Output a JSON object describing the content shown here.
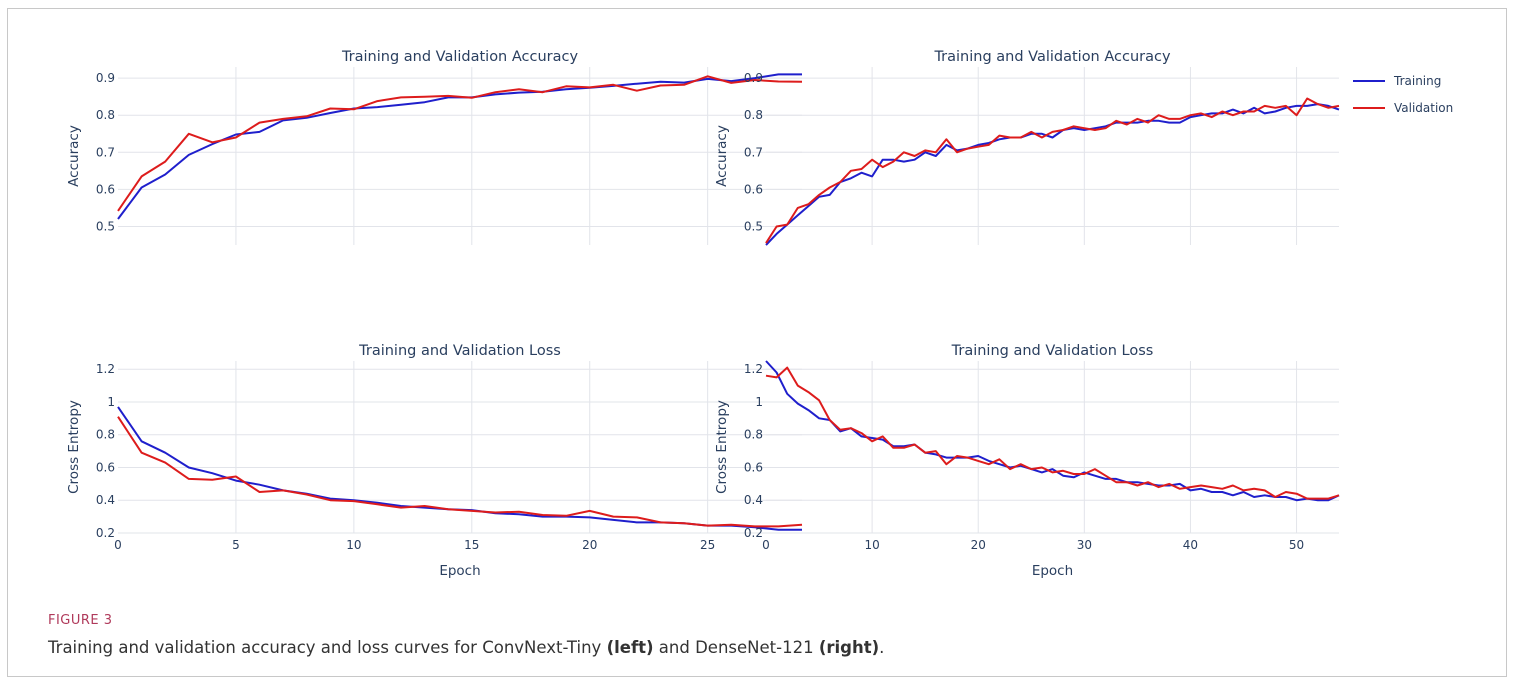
{
  "caption": {
    "label": "FIGURE 3",
    "text_a": "Training and validation accuracy and loss curves for ConvNext-Tiny ",
    "bold_a": "(left)",
    "text_b": " and DenseNet-121 ",
    "bold_b": "(right)",
    "text_c": "."
  },
  "legend": [
    {
      "name": "Training",
      "color": "#1f1fcc"
    },
    {
      "name": "Validation",
      "color": "#dd1c1c"
    }
  ],
  "colors": {
    "training": "#1f1fcc",
    "validation": "#dd1c1c",
    "grid": "#e2e4ea",
    "text": "#2a3f5f"
  },
  "chart_data": [
    {
      "type": "line",
      "title": "Training and Validation Accuracy",
      "xlabel": "",
      "ylabel": "Accuracy",
      "xlim": [
        0,
        29
      ],
      "ylim": [
        0.45,
        0.93
      ],
      "xticks": [
        0,
        5,
        10,
        15,
        20,
        25
      ],
      "yticks": [
        0.5,
        0.6,
        0.7,
        0.8,
        0.9
      ],
      "ytick_labels": [
        "0.5",
        "0.6",
        "0.7",
        "0.8",
        "0.9"
      ],
      "show_xtick_labels": false,
      "series": [
        {
          "name": "Training",
          "x0": 0,
          "values": [
            0.52,
            0.605,
            0.64,
            0.693,
            0.722,
            0.748,
            0.755,
            0.786,
            0.793,
            0.806,
            0.818,
            0.822,
            0.828,
            0.835,
            0.848,
            0.848,
            0.856,
            0.861,
            0.863,
            0.87,
            0.874,
            0.879,
            0.885,
            0.89,
            0.888,
            0.898,
            0.892,
            0.9,
            0.91,
            0.91
          ]
        },
        {
          "name": "Validation",
          "x0": 0,
          "values": [
            0.542,
            0.635,
            0.675,
            0.75,
            0.727,
            0.74,
            0.78,
            0.79,
            0.797,
            0.818,
            0.816,
            0.838,
            0.848,
            0.85,
            0.852,
            0.847,
            0.862,
            0.87,
            0.862,
            0.878,
            0.875,
            0.882,
            0.866,
            0.88,
            0.882,
            0.905,
            0.887,
            0.895,
            0.891,
            0.89
          ]
        }
      ]
    },
    {
      "type": "line",
      "title": "Training and Validation Accuracy",
      "xlabel": "",
      "ylabel": "Accuracy",
      "xlim": [
        0,
        54
      ],
      "ylim": [
        0.45,
        0.93
      ],
      "xticks": [
        0,
        10,
        20,
        30,
        40,
        50
      ],
      "yticks": [
        0.5,
        0.6,
        0.7,
        0.8,
        0.9
      ],
      "ytick_labels": [
        "0.5",
        "0.6",
        "0.7",
        "0.8",
        "0.9"
      ],
      "show_xtick_labels": false,
      "series": [
        {
          "name": "Training",
          "x0": 0,
          "values": [
            0.45,
            0.48,
            0.505,
            0.53,
            0.555,
            0.58,
            0.585,
            0.62,
            0.63,
            0.645,
            0.635,
            0.68,
            0.68,
            0.675,
            0.68,
            0.7,
            0.69,
            0.72,
            0.705,
            0.71,
            0.72,
            0.725,
            0.735,
            0.74,
            0.74,
            0.75,
            0.75,
            0.74,
            0.76,
            0.765,
            0.76,
            0.765,
            0.77,
            0.78,
            0.78,
            0.78,
            0.785,
            0.785,
            0.78,
            0.78,
            0.795,
            0.8,
            0.805,
            0.805,
            0.815,
            0.805,
            0.82,
            0.805,
            0.81,
            0.82,
            0.825,
            0.825,
            0.83,
            0.825,
            0.815
          ]
        },
        {
          "name": "Validation",
          "x0": 0,
          "values": [
            0.455,
            0.5,
            0.505,
            0.55,
            0.56,
            0.585,
            0.605,
            0.62,
            0.65,
            0.655,
            0.68,
            0.66,
            0.675,
            0.7,
            0.69,
            0.705,
            0.7,
            0.735,
            0.7,
            0.71,
            0.715,
            0.72,
            0.745,
            0.74,
            0.74,
            0.755,
            0.74,
            0.755,
            0.76,
            0.77,
            0.765,
            0.76,
            0.765,
            0.785,
            0.775,
            0.79,
            0.78,
            0.8,
            0.79,
            0.79,
            0.8,
            0.805,
            0.795,
            0.81,
            0.8,
            0.81,
            0.81,
            0.825,
            0.82,
            0.825,
            0.8,
            0.845,
            0.83,
            0.82,
            0.825
          ]
        }
      ]
    },
    {
      "type": "line",
      "title": "Training and Validation Loss",
      "xlabel": "Epoch",
      "ylabel": "Cross Entropy",
      "xlim": [
        0,
        29
      ],
      "ylim": [
        0.2,
        1.25
      ],
      "xticks": [
        0,
        5,
        10,
        15,
        20,
        25
      ],
      "yticks": [
        0.2,
        0.4,
        0.6,
        0.8,
        1.0,
        1.2
      ],
      "ytick_labels": [
        "0.2",
        "0.4",
        "0.6",
        "0.8",
        "1",
        "1.2"
      ],
      "show_xtick_labels": true,
      "series": [
        {
          "name": "Training",
          "x0": 0,
          "values": [
            0.97,
            0.76,
            0.69,
            0.6,
            0.565,
            0.52,
            0.495,
            0.46,
            0.44,
            0.41,
            0.4,
            0.385,
            0.365,
            0.355,
            0.345,
            0.34,
            0.32,
            0.315,
            0.3,
            0.3,
            0.295,
            0.28,
            0.265,
            0.265,
            0.26,
            0.245,
            0.245,
            0.235,
            0.22,
            0.22
          ]
        },
        {
          "name": "Validation",
          "x0": 0,
          "values": [
            0.91,
            0.69,
            0.63,
            0.53,
            0.525,
            0.545,
            0.45,
            0.46,
            0.435,
            0.4,
            0.395,
            0.375,
            0.355,
            0.365,
            0.345,
            0.335,
            0.325,
            0.33,
            0.31,
            0.305,
            0.335,
            0.3,
            0.295,
            0.265,
            0.26,
            0.245,
            0.25,
            0.24,
            0.24,
            0.25
          ]
        }
      ]
    },
    {
      "type": "line",
      "title": "Training and Validation Loss",
      "xlabel": "Epoch",
      "ylabel": "Cross Entropy",
      "xlim": [
        0,
        54
      ],
      "ylim": [
        0.2,
        1.25
      ],
      "xticks": [
        0,
        10,
        20,
        30,
        40,
        50
      ],
      "yticks": [
        0.2,
        0.4,
        0.6,
        0.8,
        1.0,
        1.2
      ],
      "ytick_labels": [
        "0.2",
        "0.4",
        "0.6",
        "0.8",
        "1",
        "1.2"
      ],
      "show_xtick_labels": true,
      "series": [
        {
          "name": "Training",
          "x0": 0,
          "values": [
            1.25,
            1.18,
            1.05,
            0.99,
            0.95,
            0.9,
            0.89,
            0.82,
            0.84,
            0.79,
            0.78,
            0.77,
            0.73,
            0.73,
            0.74,
            0.69,
            0.68,
            0.66,
            0.66,
            0.66,
            0.67,
            0.64,
            0.62,
            0.6,
            0.61,
            0.59,
            0.57,
            0.59,
            0.55,
            0.54,
            0.57,
            0.55,
            0.53,
            0.53,
            0.51,
            0.51,
            0.5,
            0.49,
            0.49,
            0.5,
            0.46,
            0.47,
            0.45,
            0.45,
            0.43,
            0.45,
            0.42,
            0.43,
            0.42,
            0.42,
            0.4,
            0.41,
            0.4,
            0.4,
            0.43
          ]
        },
        {
          "name": "Validation",
          "x0": 0,
          "values": [
            1.16,
            1.15,
            1.21,
            1.1,
            1.06,
            1.01,
            0.89,
            0.83,
            0.84,
            0.81,
            0.76,
            0.79,
            0.72,
            0.72,
            0.74,
            0.69,
            0.7,
            0.62,
            0.67,
            0.66,
            0.64,
            0.62,
            0.65,
            0.59,
            0.62,
            0.59,
            0.6,
            0.57,
            0.58,
            0.56,
            0.56,
            0.59,
            0.55,
            0.51,
            0.51,
            0.49,
            0.51,
            0.48,
            0.5,
            0.47,
            0.48,
            0.49,
            0.48,
            0.47,
            0.49,
            0.46,
            0.47,
            0.46,
            0.42,
            0.45,
            0.44,
            0.41,
            0.41,
            0.41,
            0.43
          ]
        }
      ]
    }
  ]
}
